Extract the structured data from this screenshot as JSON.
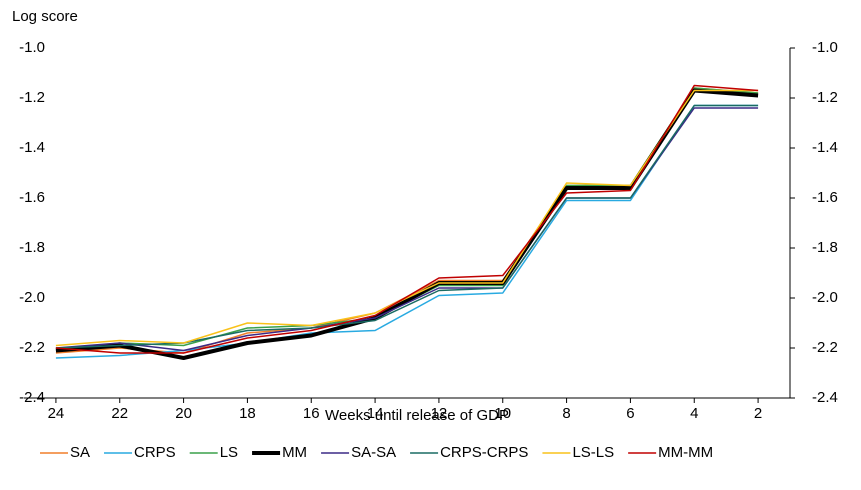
{
  "chart_data": {
    "type": "line",
    "y_label": "Log score",
    "x_label": "Weeks until release of GDP",
    "x": [
      24,
      22,
      20,
      18,
      16,
      14,
      12,
      10,
      8,
      6,
      4,
      2
    ],
    "xlim": [
      25,
      1
    ],
    "xticks": [
      24,
      22,
      20,
      18,
      16,
      14,
      12,
      10,
      8,
      6,
      4,
      2
    ],
    "ylim": [
      -2.4,
      -1.0
    ],
    "yticks": [
      {
        "value": -2.4,
        "label": "-2.4"
      },
      {
        "value": -2.2,
        "label": "-2.2"
      },
      {
        "value": -2.0,
        "label": "-2.0"
      },
      {
        "value": -1.8,
        "label": "-1.8"
      },
      {
        "value": -1.6,
        "label": "-1.6"
      },
      {
        "value": -1.4,
        "label": "-1.4"
      },
      {
        "value": -1.2,
        "label": "-1.2"
      },
      {
        "value": -1.0,
        "label": "-1.0"
      }
    ],
    "y2lim": [
      -2.4,
      -1.0
    ],
    "y2ticks": [
      {
        "value": -2.4,
        "label": "-2.4"
      },
      {
        "value": -2.2,
        "label": "-2.2"
      },
      {
        "value": -2.0,
        "label": "-2.0"
      },
      {
        "value": -1.8,
        "label": "-1.8"
      },
      {
        "value": -1.6,
        "label": "-1.6"
      },
      {
        "value": -1.4,
        "label": "-1.4"
      },
      {
        "value": -1.2,
        "label": "-1.2"
      },
      {
        "value": -1.0,
        "label": "-1.0"
      }
    ],
    "legend": "bottom",
    "series": [
      {
        "name": "SA",
        "color": "#f07f2a",
        "linewidth": 1.5,
        "values": [
          -2.22,
          -2.2,
          -2.22,
          -2.14,
          -2.12,
          -2.06,
          -1.93,
          -1.93,
          -1.55,
          -1.55,
          -1.16,
          -1.18
        ]
      },
      {
        "name": "CRPS",
        "color": "#29aae1",
        "linewidth": 1.5,
        "values": [
          -2.24,
          -2.23,
          -2.21,
          -2.18,
          -2.14,
          -2.13,
          -1.99,
          -1.98,
          -1.61,
          -1.61,
          -1.23,
          -1.23
        ]
      },
      {
        "name": "LS",
        "color": "#3aa14a",
        "linewidth": 1.5,
        "values": [
          -2.21,
          -2.18,
          -2.19,
          -2.12,
          -2.11,
          -2.08,
          -1.95,
          -1.95,
          -1.55,
          -1.55,
          -1.16,
          -1.18
        ]
      },
      {
        "name": "MM",
        "color": "#000000",
        "linewidth": 4,
        "values": [
          -2.21,
          -2.19,
          -2.24,
          -2.18,
          -2.15,
          -2.08,
          -1.94,
          -1.94,
          -1.56,
          -1.56,
          -1.17,
          -1.19
        ]
      },
      {
        "name": "SA-SA",
        "color": "#3b2a86",
        "linewidth": 1.5,
        "values": [
          -2.2,
          -2.18,
          -2.21,
          -2.15,
          -2.12,
          -2.08,
          -1.96,
          -1.96,
          -1.6,
          -1.6,
          -1.24,
          -1.24
        ]
      },
      {
        "name": "CRPS-CRPS",
        "color": "#1a6b63",
        "linewidth": 1.5,
        "values": [
          -2.2,
          -2.19,
          -2.18,
          -2.13,
          -2.12,
          -2.09,
          -1.97,
          -1.96,
          -1.6,
          -1.6,
          -1.23,
          -1.23
        ]
      },
      {
        "name": "LS-LS",
        "color": "#f9c21a",
        "linewidth": 1.5,
        "values": [
          -2.19,
          -2.17,
          -2.18,
          -2.1,
          -2.11,
          -2.06,
          -1.94,
          -1.94,
          -1.54,
          -1.55,
          -1.17,
          -1.17
        ]
      },
      {
        "name": "MM-MM",
        "color": "#c00000",
        "linewidth": 1.5,
        "values": [
          -2.2,
          -2.22,
          -2.22,
          -2.16,
          -2.13,
          -2.07,
          -1.92,
          -1.91,
          -1.58,
          -1.57,
          -1.15,
          -1.17
        ]
      }
    ]
  }
}
